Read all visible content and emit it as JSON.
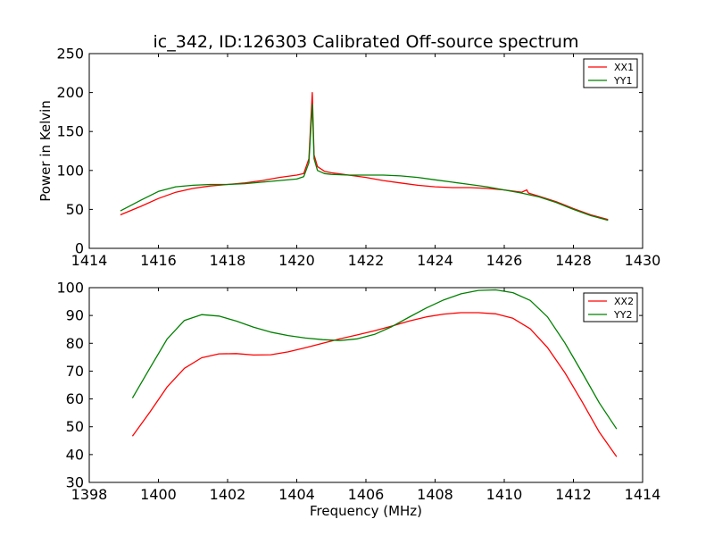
{
  "figure": {
    "title": "ic_342, ID:126303 Calibrated Off-source spectrum"
  },
  "chart_data": [
    {
      "type": "line",
      "title": "ic_342, ID:126303 Calibrated Off-source spectrum",
      "xlabel": "",
      "ylabel": "Power in Kelvin",
      "xlim": [
        1414,
        1430
      ],
      "ylim": [
        0,
        250
      ],
      "xticks": [
        1414,
        1416,
        1418,
        1420,
        1422,
        1424,
        1426,
        1428,
        1430
      ],
      "yticks": [
        0,
        50,
        100,
        150,
        200,
        250
      ],
      "grid": false,
      "legend": "top-right",
      "series": [
        {
          "name": "XX1",
          "color": "#ff0000",
          "x": [
            1414.9,
            1415.5,
            1416.0,
            1416.5,
            1417.0,
            1417.5,
            1418.0,
            1418.5,
            1419.0,
            1419.5,
            1420.0,
            1420.2,
            1420.35,
            1420.45,
            1420.5,
            1420.6,
            1420.8,
            1421.0,
            1421.5,
            1422.0,
            1422.5,
            1423.0,
            1423.5,
            1424.0,
            1424.5,
            1425.0,
            1425.5,
            1426.0,
            1426.5,
            1426.65,
            1426.7,
            1427.0,
            1427.5,
            1428.0,
            1428.5,
            1429.0
          ],
          "y": [
            43,
            54,
            64,
            72,
            77,
            80,
            82,
            84,
            87,
            91,
            94,
            96,
            115,
            200,
            120,
            105,
            99,
            97,
            94,
            91,
            87,
            84,
            81,
            79,
            78,
            78,
            77,
            75,
            72,
            75,
            71,
            67,
            60,
            51,
            43,
            37
          ]
        },
        {
          "name": "YY1",
          "color": "#008000",
          "x": [
            1414.9,
            1415.5,
            1416.0,
            1416.5,
            1417.0,
            1417.5,
            1418.0,
            1418.5,
            1419.0,
            1419.5,
            1420.0,
            1420.2,
            1420.35,
            1420.45,
            1420.5,
            1420.6,
            1420.8,
            1421.0,
            1421.5,
            1422.0,
            1422.5,
            1423.0,
            1423.5,
            1424.0,
            1424.5,
            1425.0,
            1425.5,
            1426.0,
            1426.5,
            1427.0,
            1427.5,
            1428.0,
            1428.5,
            1429.0
          ],
          "y": [
            48,
            62,
            73,
            79,
            81,
            82,
            82,
            83,
            85,
            87,
            89,
            92,
            110,
            185,
            115,
            100,
            96,
            95,
            94,
            94,
            94,
            93,
            91,
            88,
            85,
            82,
            79,
            75,
            71,
            66,
            59,
            50,
            42,
            36
          ]
        }
      ]
    },
    {
      "type": "line",
      "title": "",
      "xlabel": "Frequency (MHz)",
      "ylabel": "",
      "xlim": [
        1398,
        1414
      ],
      "ylim": [
        30,
        100
      ],
      "xticks": [
        1398,
        1400,
        1402,
        1404,
        1406,
        1408,
        1410,
        1412,
        1414
      ],
      "yticks": [
        30,
        40,
        50,
        60,
        70,
        80,
        90,
        100
      ],
      "grid": false,
      "legend": "top-right",
      "series": [
        {
          "name": "XX2",
          "color": "#ff0000",
          "x": [
            1399.25,
            1399.75,
            1400.25,
            1400.75,
            1401.25,
            1401.75,
            1402.25,
            1402.75,
            1403.25,
            1403.75,
            1404.25,
            1404.75,
            1405.25,
            1405.75,
            1406.25,
            1406.75,
            1407.25,
            1407.75,
            1408.25,
            1408.75,
            1409.25,
            1409.75,
            1410.25,
            1410.75,
            1411.25,
            1411.75,
            1412.25,
            1412.75,
            1413.25
          ],
          "y": [
            46.6,
            55.2,
            64.3,
            71.0,
            74.8,
            76.2,
            76.3,
            75.8,
            75.9,
            76.9,
            78.4,
            80.0,
            81.6,
            83.0,
            84.5,
            86.2,
            88.0,
            89.5,
            90.5,
            91.0,
            91.0,
            90.6,
            89.0,
            85.2,
            78.5,
            69.5,
            59.0,
            48.0,
            39.2
          ]
        },
        {
          "name": "YY2",
          "color": "#008000",
          "x": [
            1399.25,
            1399.75,
            1400.25,
            1400.75,
            1401.25,
            1401.75,
            1402.25,
            1402.75,
            1403.25,
            1403.75,
            1404.25,
            1404.75,
            1405.25,
            1405.75,
            1406.25,
            1406.75,
            1407.25,
            1407.75,
            1408.25,
            1408.75,
            1409.25,
            1409.75,
            1410.25,
            1410.75,
            1411.25,
            1411.75,
            1412.25,
            1412.75,
            1413.25
          ],
          "y": [
            60.3,
            71.0,
            81.5,
            88.2,
            90.3,
            89.8,
            88.0,
            85.8,
            84.0,
            82.8,
            81.9,
            81.3,
            81.0,
            81.6,
            83.2,
            86.0,
            89.4,
            92.7,
            95.6,
            97.8,
            99.0,
            99.2,
            98.2,
            95.4,
            89.5,
            80.2,
            69.5,
            58.5,
            49.2
          ]
        }
      ]
    }
  ]
}
